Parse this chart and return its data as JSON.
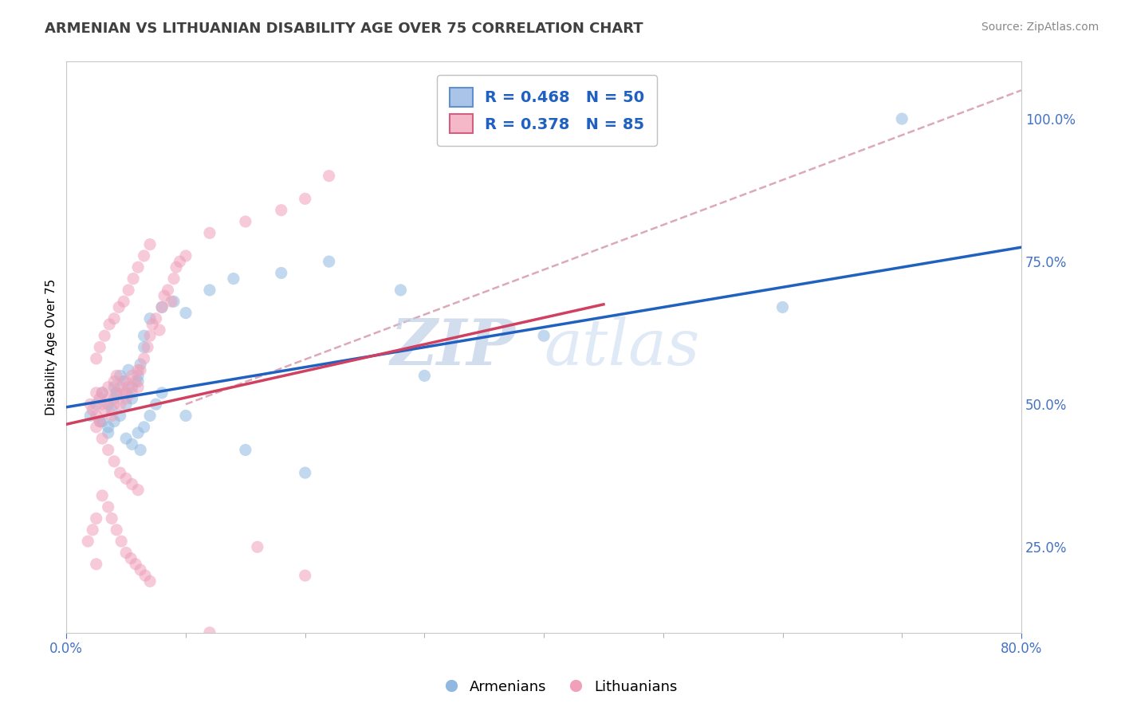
{
  "title": "ARMENIAN VS LITHUANIAN DISABILITY AGE OVER 75 CORRELATION CHART",
  "source": "Source: ZipAtlas.com",
  "ylabel": "Disability Age Over 75",
  "y_ticks": [
    0.25,
    0.5,
    0.75,
    1.0
  ],
  "y_tick_labels": [
    "25.0%",
    "50.0%",
    "75.0%",
    "100.0%"
  ],
  "x_range": [
    0.0,
    0.8
  ],
  "y_range": [
    0.1,
    1.1
  ],
  "legend_entries": [
    {
      "label": "R = 0.468   N = 50",
      "color": "#aac4e8"
    },
    {
      "label": "R = 0.378   N = 85",
      "color": "#f4b8c8"
    }
  ],
  "armenian_scatter_color": "#90b8e0",
  "lithuanian_scatter_color": "#f0a0b8",
  "armenian_line_color": "#2060c0",
  "lithuanian_line_color": "#d04060",
  "ref_line_color": "#d8a0b0",
  "watermark_zip": "ZIP",
  "watermark_atlas": "atlas",
  "background_color": "#ffffff",
  "grid_color": "#d8d8e8",
  "title_color": "#404040",
  "axis_label_color": "#4472c4",
  "scatter_size": 120,
  "scatter_alpha": 0.55,
  "armenian_x": [
    0.02,
    0.025,
    0.03,
    0.03,
    0.035,
    0.038,
    0.04,
    0.04,
    0.042,
    0.045,
    0.048,
    0.05,
    0.05,
    0.052,
    0.055,
    0.055,
    0.06,
    0.06,
    0.062,
    0.065,
    0.065,
    0.07,
    0.08,
    0.09,
    0.1,
    0.12,
    0.14,
    0.18,
    0.22,
    0.28,
    0.035,
    0.04,
    0.045,
    0.05,
    0.055,
    0.06,
    0.062,
    0.065,
    0.07,
    0.075,
    0.08,
    0.1,
    0.15,
    0.2,
    0.3,
    0.4,
    0.6,
    0.7,
    0.035,
    0.028
  ],
  "armenian_y": [
    0.48,
    0.5,
    0.47,
    0.52,
    0.5,
    0.49,
    0.53,
    0.51,
    0.52,
    0.55,
    0.54,
    0.5,
    0.52,
    0.56,
    0.51,
    0.53,
    0.55,
    0.54,
    0.57,
    0.6,
    0.62,
    0.65,
    0.67,
    0.68,
    0.66,
    0.7,
    0.72,
    0.73,
    0.75,
    0.7,
    0.46,
    0.47,
    0.48,
    0.44,
    0.43,
    0.45,
    0.42,
    0.46,
    0.48,
    0.5,
    0.52,
    0.48,
    0.42,
    0.38,
    0.55,
    0.62,
    0.67,
    1.0,
    0.45,
    0.47
  ],
  "armenian_line_x": [
    0.0,
    0.8
  ],
  "armenian_line_y": [
    0.495,
    0.775
  ],
  "lithuanian_x": [
    0.02,
    0.022,
    0.025,
    0.025,
    0.028,
    0.028,
    0.03,
    0.03,
    0.032,
    0.035,
    0.035,
    0.038,
    0.04,
    0.04,
    0.042,
    0.042,
    0.045,
    0.045,
    0.048,
    0.05,
    0.05,
    0.052,
    0.055,
    0.055,
    0.058,
    0.06,
    0.06,
    0.062,
    0.065,
    0.068,
    0.07,
    0.072,
    0.075,
    0.078,
    0.08,
    0.082,
    0.085,
    0.088,
    0.09,
    0.092,
    0.095,
    0.1,
    0.025,
    0.03,
    0.035,
    0.04,
    0.045,
    0.05,
    0.055,
    0.06,
    0.025,
    0.028,
    0.032,
    0.036,
    0.04,
    0.044,
    0.048,
    0.052,
    0.056,
    0.06,
    0.065,
    0.07,
    0.12,
    0.15,
    0.18,
    0.2,
    0.22,
    0.025,
    0.022,
    0.018,
    0.03,
    0.035,
    0.038,
    0.042,
    0.046,
    0.05,
    0.054,
    0.058,
    0.062,
    0.066,
    0.07,
    0.16,
    0.2,
    0.025,
    0.12
  ],
  "lithuanian_y": [
    0.5,
    0.49,
    0.48,
    0.52,
    0.51,
    0.47,
    0.5,
    0.52,
    0.49,
    0.51,
    0.53,
    0.48,
    0.5,
    0.54,
    0.52,
    0.55,
    0.53,
    0.5,
    0.52,
    0.51,
    0.54,
    0.53,
    0.55,
    0.52,
    0.54,
    0.56,
    0.53,
    0.56,
    0.58,
    0.6,
    0.62,
    0.64,
    0.65,
    0.63,
    0.67,
    0.69,
    0.7,
    0.68,
    0.72,
    0.74,
    0.75,
    0.76,
    0.46,
    0.44,
    0.42,
    0.4,
    0.38,
    0.37,
    0.36,
    0.35,
    0.58,
    0.6,
    0.62,
    0.64,
    0.65,
    0.67,
    0.68,
    0.7,
    0.72,
    0.74,
    0.76,
    0.78,
    0.8,
    0.82,
    0.84,
    0.86,
    0.9,
    0.3,
    0.28,
    0.26,
    0.34,
    0.32,
    0.3,
    0.28,
    0.26,
    0.24,
    0.23,
    0.22,
    0.21,
    0.2,
    0.19,
    0.25,
    0.2,
    0.22,
    0.1
  ],
  "lithuanian_line_x": [
    0.0,
    0.45
  ],
  "lithuanian_line_y": [
    0.465,
    0.675
  ],
  "ref_line_x": [
    0.1,
    0.8
  ],
  "ref_line_y": [
    0.5,
    1.05
  ]
}
